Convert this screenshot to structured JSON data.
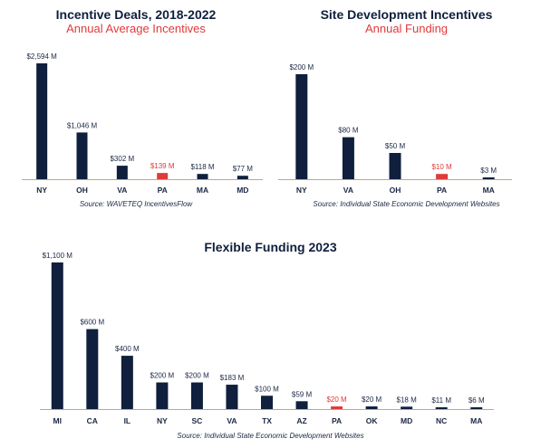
{
  "colors": {
    "bar": "#0f1f3d",
    "highlight": "#e03a3a",
    "axis": "#c8a96a",
    "label": "#1a2744"
  },
  "chart_data": [
    {
      "type": "bar",
      "title": "Incentive Deals, 2018-2022",
      "subtitle": "Annual Average Incentives",
      "source": "Source: WAVETEQ IncentivesFlow",
      "categories": [
        "NY",
        "OH",
        "VA",
        "PA",
        "MA",
        "MD"
      ],
      "values": [
        2594,
        1046,
        302,
        139,
        118,
        77
      ],
      "value_labels": [
        "$2,594 M",
        "$1,046 M",
        "$302 M",
        "$139 M",
        "$118 M",
        "$77 M"
      ],
      "highlight": "PA",
      "ylim": [
        0,
        2594
      ]
    },
    {
      "type": "bar",
      "title": "Site Development Incentives",
      "subtitle": "Annual Funding",
      "source": "Source: Individual State Economic Development Websites",
      "categories": [
        "NY",
        "VA",
        "OH",
        "PA",
        "MA"
      ],
      "values": [
        200,
        80,
        50,
        10,
        3
      ],
      "value_labels": [
        "$200 M",
        "$80 M",
        "$50 M",
        "$10 M",
        "$3 M"
      ],
      "highlight": "PA",
      "ylim": [
        0,
        200
      ]
    },
    {
      "type": "bar",
      "title": "Flexible Funding 2023",
      "subtitle": "",
      "source": "Source: Individual State Economic Development Websites",
      "categories": [
        "MI",
        "CA",
        "IL",
        "NY",
        "SC",
        "VA",
        "TX",
        "AZ",
        "PA",
        "OK",
        "MD",
        "NC",
        "MA"
      ],
      "values": [
        1100,
        600,
        400,
        200,
        200,
        183,
        100,
        59,
        20,
        20,
        18,
        11,
        6
      ],
      "value_labels": [
        "$1,100 M",
        "$600 M",
        "$400 M",
        "$200 M",
        "$200 M",
        "$183 M",
        "$100 M",
        "$59 M",
        "$20 M",
        "$20 M",
        "$18 M",
        "$11 M",
        "$6 M"
      ],
      "highlight": "PA",
      "ylim": [
        0,
        1100
      ]
    }
  ]
}
